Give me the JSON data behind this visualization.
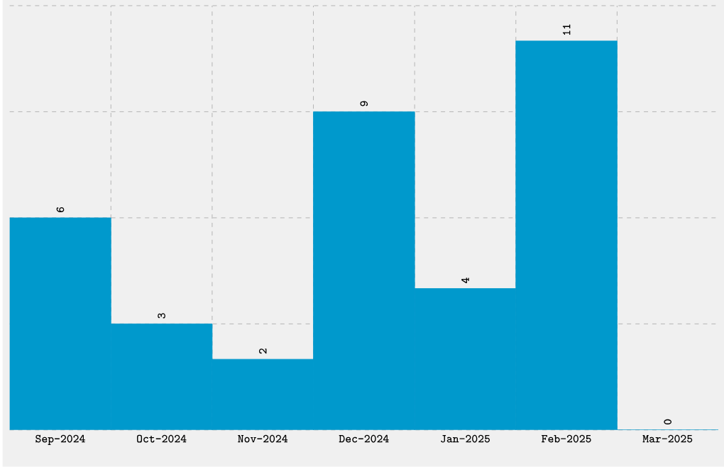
{
  "chart_data": {
    "type": "bar",
    "categories": [
      "Sep-2024",
      "Oct-2024",
      "Nov-2024",
      "Dec-2024",
      "Jan-2025",
      "Feb-2025",
      "Mar-2025"
    ],
    "values": [
      6,
      3,
      2,
      9,
      4,
      11,
      0
    ],
    "color": "#0099cc",
    "ylim": [
      0,
      12
    ],
    "yticks": [
      {
        "value": 0,
        "label": null
      },
      {
        "value": 3,
        "label": null
      },
      {
        "value": 6,
        "label": null
      },
      {
        "value": 9,
        "label": null
      },
      {
        "value": 12,
        "label": null
      }
    ],
    "tick_labels": "x",
    "grid": true,
    "data_labels": true
  }
}
